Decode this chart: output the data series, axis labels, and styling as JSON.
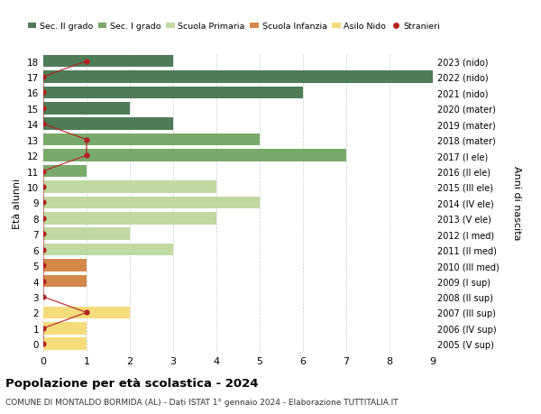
{
  "ages": [
    18,
    17,
    16,
    15,
    14,
    13,
    12,
    11,
    10,
    9,
    8,
    7,
    6,
    5,
    4,
    3,
    2,
    1,
    0
  ],
  "right_labels": [
    "2005 (V sup)",
    "2006 (IV sup)",
    "2007 (III sup)",
    "2008 (II sup)",
    "2009 (I sup)",
    "2010 (III med)",
    "2011 (II med)",
    "2012 (I med)",
    "2013 (V ele)",
    "2014 (IV ele)",
    "2015 (III ele)",
    "2016 (II ele)",
    "2017 (I ele)",
    "2018 (mater)",
    "2019 (mater)",
    "2020 (mater)",
    "2021 (nido)",
    "2022 (nido)",
    "2023 (nido)"
  ],
  "bar_values": [
    3,
    9,
    6,
    2,
    3,
    5,
    7,
    1,
    4,
    5,
    4,
    2,
    3,
    1,
    1,
    0,
    2,
    1,
    1
  ],
  "bar_colors": [
    "#4e7c56",
    "#4e7c56",
    "#4e7c56",
    "#4e7c56",
    "#4e7c56",
    "#7aaa6a",
    "#7aaa6a",
    "#7aaa6a",
    "#c0d9a0",
    "#c0d9a0",
    "#c0d9a0",
    "#c0d9a0",
    "#c0d9a0",
    "#d4884a",
    "#d4884a",
    "#d4884a",
    "#f5dc7a",
    "#f5dc7a",
    "#f5dc7a"
  ],
  "stranieri_values": [
    1,
    0,
    0,
    0,
    0,
    1,
    1,
    0,
    0,
    0,
    0,
    0,
    0,
    0,
    0,
    0,
    1,
    0,
    0
  ],
  "legend_labels": [
    "Sec. II grado",
    "Sec. I grado",
    "Scuola Primaria",
    "Scuola Infanzia",
    "Asilo Nido",
    "Stranieri"
  ],
  "legend_colors": [
    "#4e7c56",
    "#7aaa6a",
    "#c0d9a0",
    "#d4884a",
    "#f5dc7a",
    "#b22222"
  ],
  "ylabel": "Età alunni",
  "right_ylabel": "Anni di nascita",
  "title": "Popolazione per età scolastica - 2024",
  "subtitle": "COMUNE DI MONTALDO BORMIDA (AL) - Dati ISTAT 1° gennaio 2024 - Elaborazione TUTTITALIA.IT",
  "xlim": [
    0,
    9
  ],
  "bg_color": "#ffffff",
  "grid_color": "#cccccc",
  "stranieri_color": "#b22222",
  "stranieri_line_color": "#b22222"
}
